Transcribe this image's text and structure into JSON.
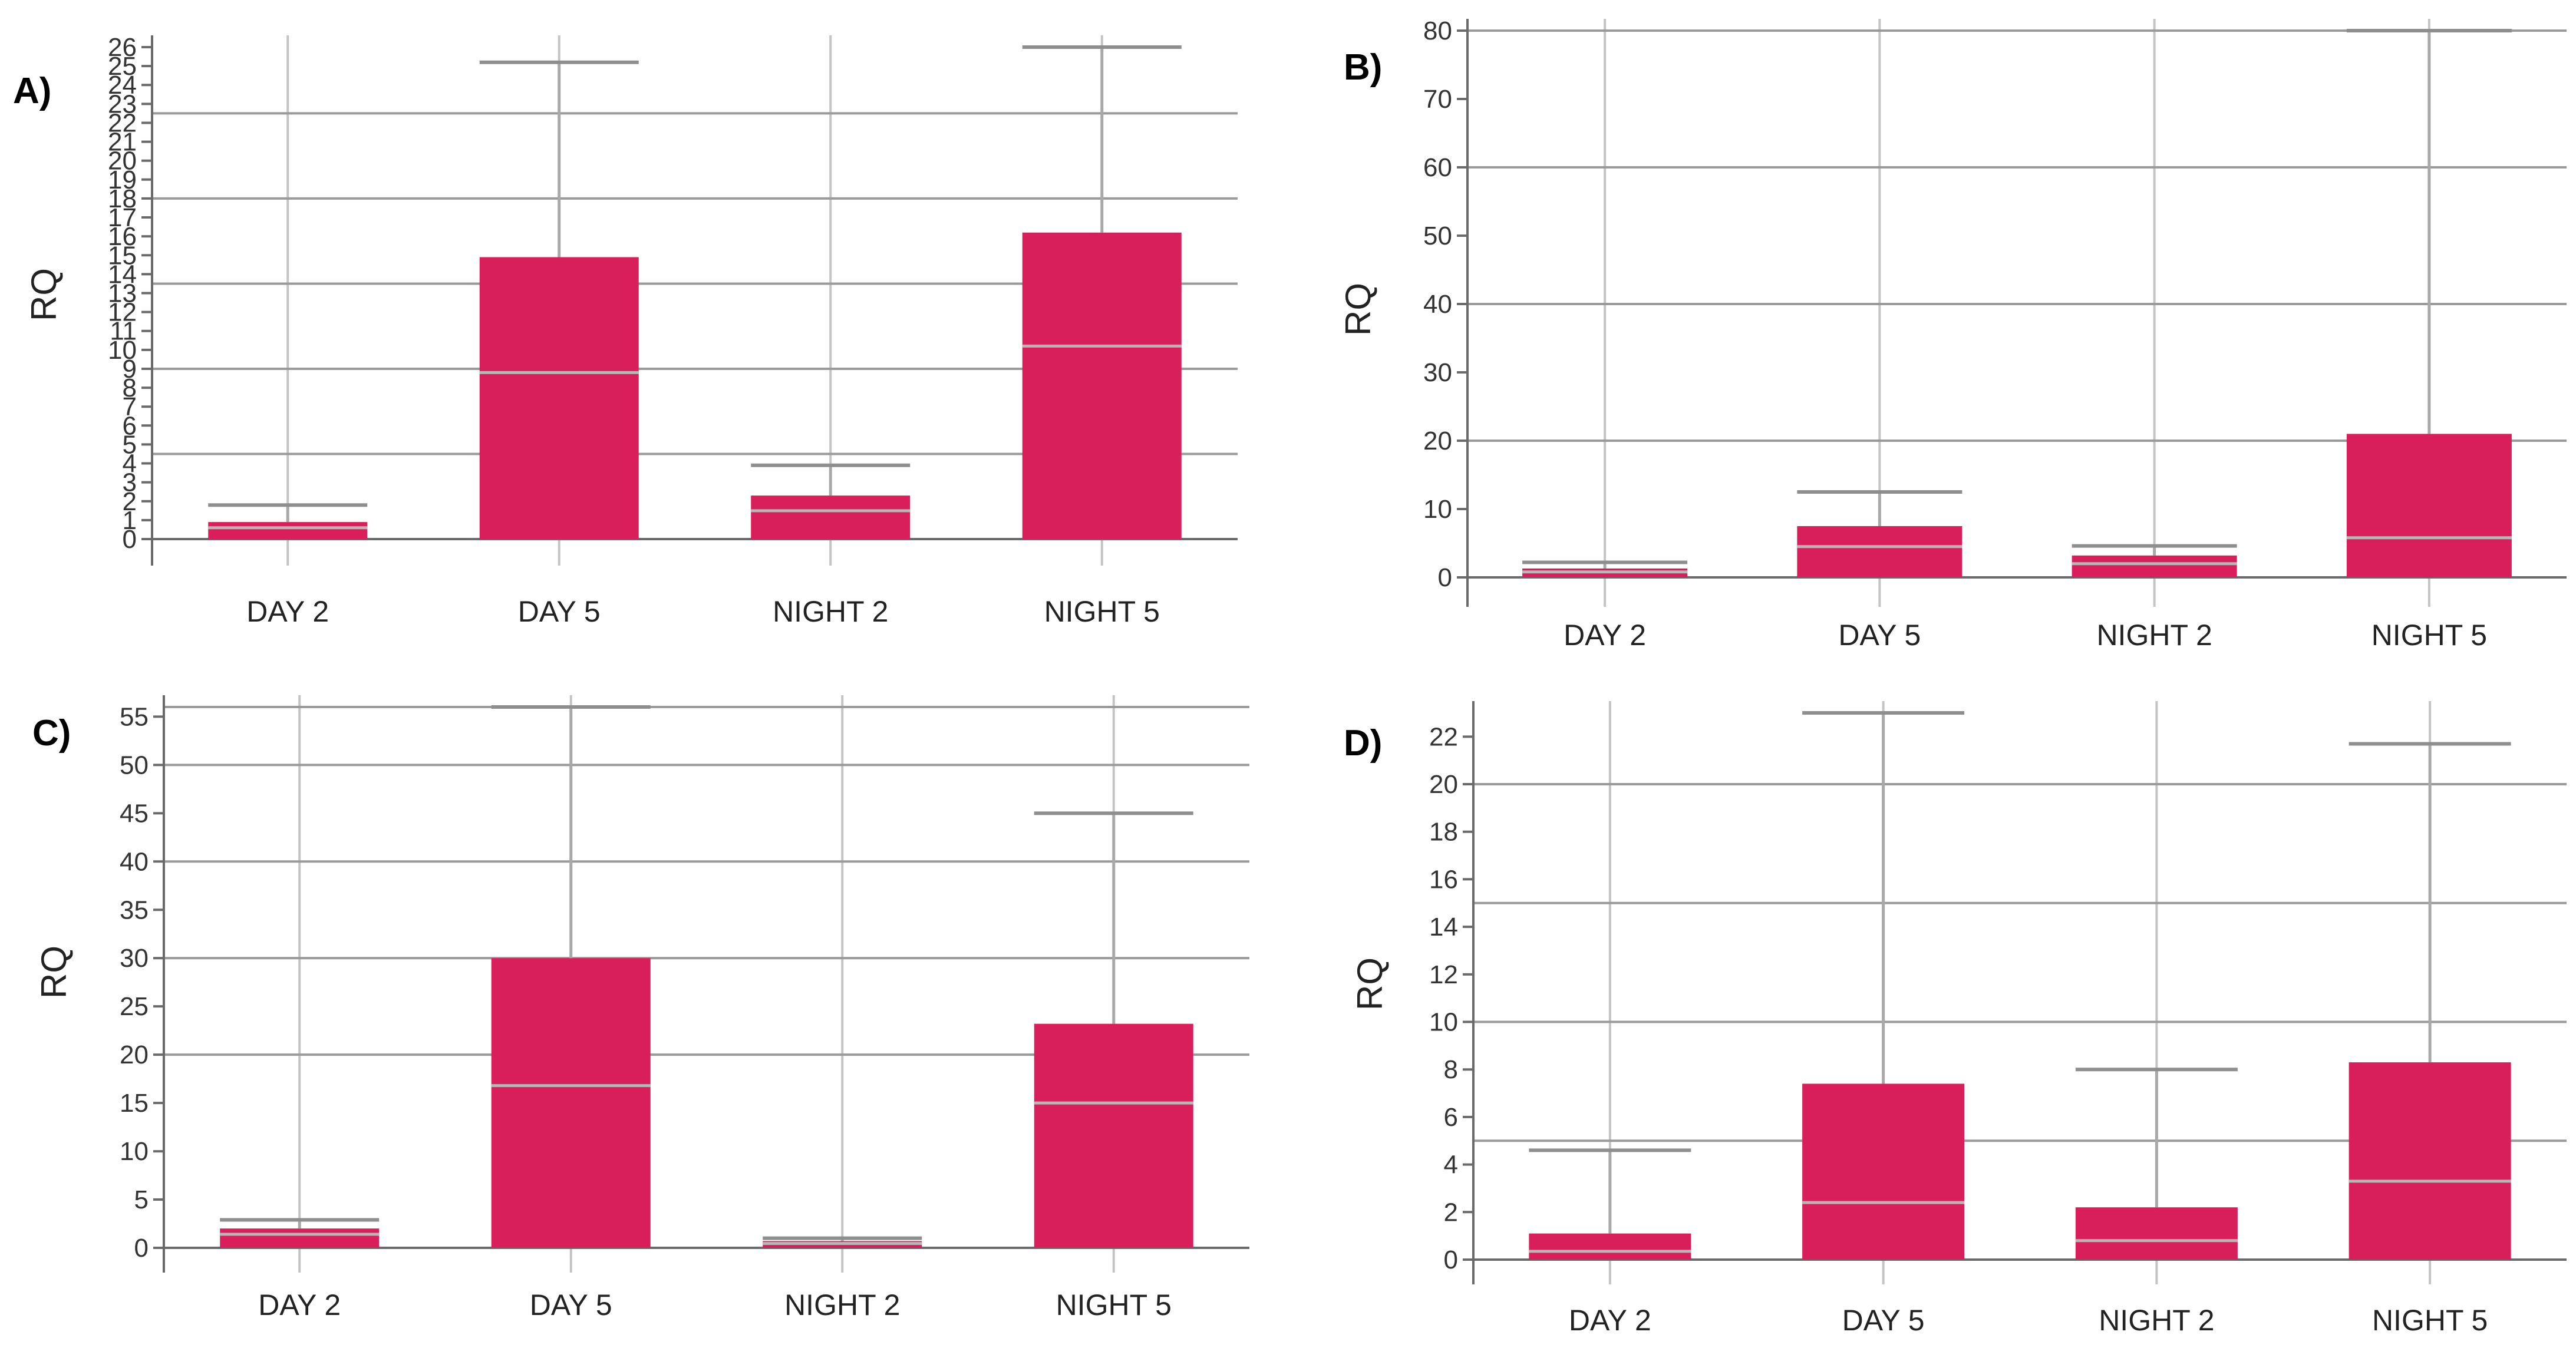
{
  "colors": {
    "bar": "#d81e5b",
    "median": "#b7b7b7",
    "grid": "#9a9a9a"
  },
  "chart_data": [
    {
      "panel": "A)",
      "type": "bar",
      "ylabel": "RQ",
      "xlabel": "",
      "categories": [
        "DAY 2",
        "DAY 5",
        "NIGHT 2",
        "NIGHT 5"
      ],
      "ylim": [
        0,
        26
      ],
      "yticks": [
        0,
        1,
        2,
        3,
        4,
        5,
        6,
        7,
        8,
        9,
        10,
        11,
        12,
        13,
        14,
        15,
        16,
        17,
        18,
        19,
        20,
        21,
        22,
        23,
        24,
        25,
        26
      ],
      "gridlines": [
        0,
        4.5,
        9,
        13.5,
        18,
        22.5
      ],
      "values": [
        0.9,
        14.9,
        2.3,
        16.2
      ],
      "medians": [
        0.6,
        8.8,
        1.5,
        10.2
      ],
      "err_upper": [
        1.8,
        25.2,
        3.9,
        26
      ]
    },
    {
      "panel": "B)",
      "type": "bar",
      "ylabel": "RQ",
      "xlabel": "",
      "categories": [
        "DAY 2",
        "DAY 5",
        "NIGHT 2",
        "NIGHT 5"
      ],
      "ylim": [
        0,
        80
      ],
      "yticks": [
        0,
        10,
        20,
        30,
        40,
        50,
        60,
        70,
        80
      ],
      "gridlines": [
        0,
        20,
        40,
        60,
        80
      ],
      "values": [
        1.3,
        7.5,
        3.2,
        21.0
      ],
      "medians": [
        0.8,
        4.5,
        2.0,
        5.8
      ],
      "err_upper": [
        2.2,
        12.5,
        4.6,
        80
      ]
    },
    {
      "panel": "C)",
      "type": "bar",
      "ylabel": "RQ",
      "xlabel": "",
      "categories": [
        "DAY 2",
        "DAY 5",
        "NIGHT 2",
        "NIGHT 5"
      ],
      "ylim": [
        0,
        56
      ],
      "yticks": [
        0,
        5,
        10,
        15,
        20,
        25,
        30,
        35,
        40,
        45,
        50,
        55
      ],
      "gridlines": [
        0,
        20,
        30,
        40,
        50,
        56
      ],
      "values": [
        2.0,
        30.0,
        0.7,
        23.2
      ],
      "medians": [
        1.4,
        16.8,
        0.45,
        15.0
      ],
      "err_upper": [
        2.9,
        56,
        1.0,
        45
      ]
    },
    {
      "panel": "D)",
      "type": "bar",
      "ylabel": "RQ",
      "xlabel": "",
      "categories": [
        "DAY 2",
        "DAY 5",
        "NIGHT 2",
        "NIGHT 5"
      ],
      "ylim": [
        0,
        23
      ],
      "yticks": [
        0,
        2,
        4,
        6,
        8,
        10,
        12,
        14,
        16,
        18,
        20,
        22
      ],
      "gridlines": [
        0,
        5,
        10,
        15,
        20
      ],
      "values": [
        1.1,
        7.4,
        2.2,
        8.3
      ],
      "medians": [
        0.35,
        2.4,
        0.8,
        3.3
      ],
      "err_upper": [
        4.6,
        23,
        8.0,
        21.7
      ]
    }
  ]
}
